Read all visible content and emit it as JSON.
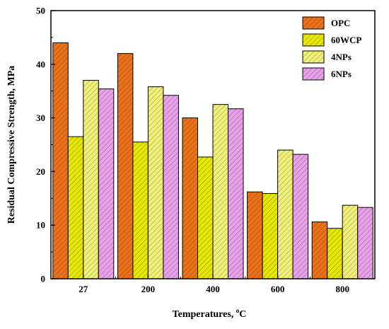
{
  "chart_data": {
    "type": "bar",
    "title": "",
    "xlabel": "Temperatures, °C",
    "xlabel_main": "Temperatures, ",
    "xlabel_sup": "o",
    "xlabel_unit": "C",
    "ylabel": "Residual Compressive Strength, MPa",
    "ylim": [
      0,
      50
    ],
    "yticks": [
      0,
      10,
      20,
      30,
      40,
      50
    ],
    "categories": [
      "27",
      "200",
      "400",
      "600",
      "800"
    ],
    "legend_position": "top-right",
    "series": [
      {
        "name": "OPC",
        "color": "#e8731c",
        "hatch": "#b03f00",
        "values": [
          44.0,
          42.0,
          30.0,
          16.2,
          10.6
        ]
      },
      {
        "name": "60WCP",
        "color": "#e8e800",
        "hatch": "#8a8a00",
        "values": [
          26.5,
          25.5,
          22.7,
          15.9,
          9.4
        ]
      },
      {
        "name": "4NPs",
        "color": "#f0f07a",
        "hatch": "#9a9a40",
        "values": [
          37.0,
          35.8,
          32.5,
          24.0,
          13.7
        ]
      },
      {
        "name": "6NPs",
        "color": "#e7a3e7",
        "hatch": "#a050a0",
        "values": [
          35.4,
          34.2,
          31.7,
          23.2,
          13.3
        ]
      }
    ]
  }
}
